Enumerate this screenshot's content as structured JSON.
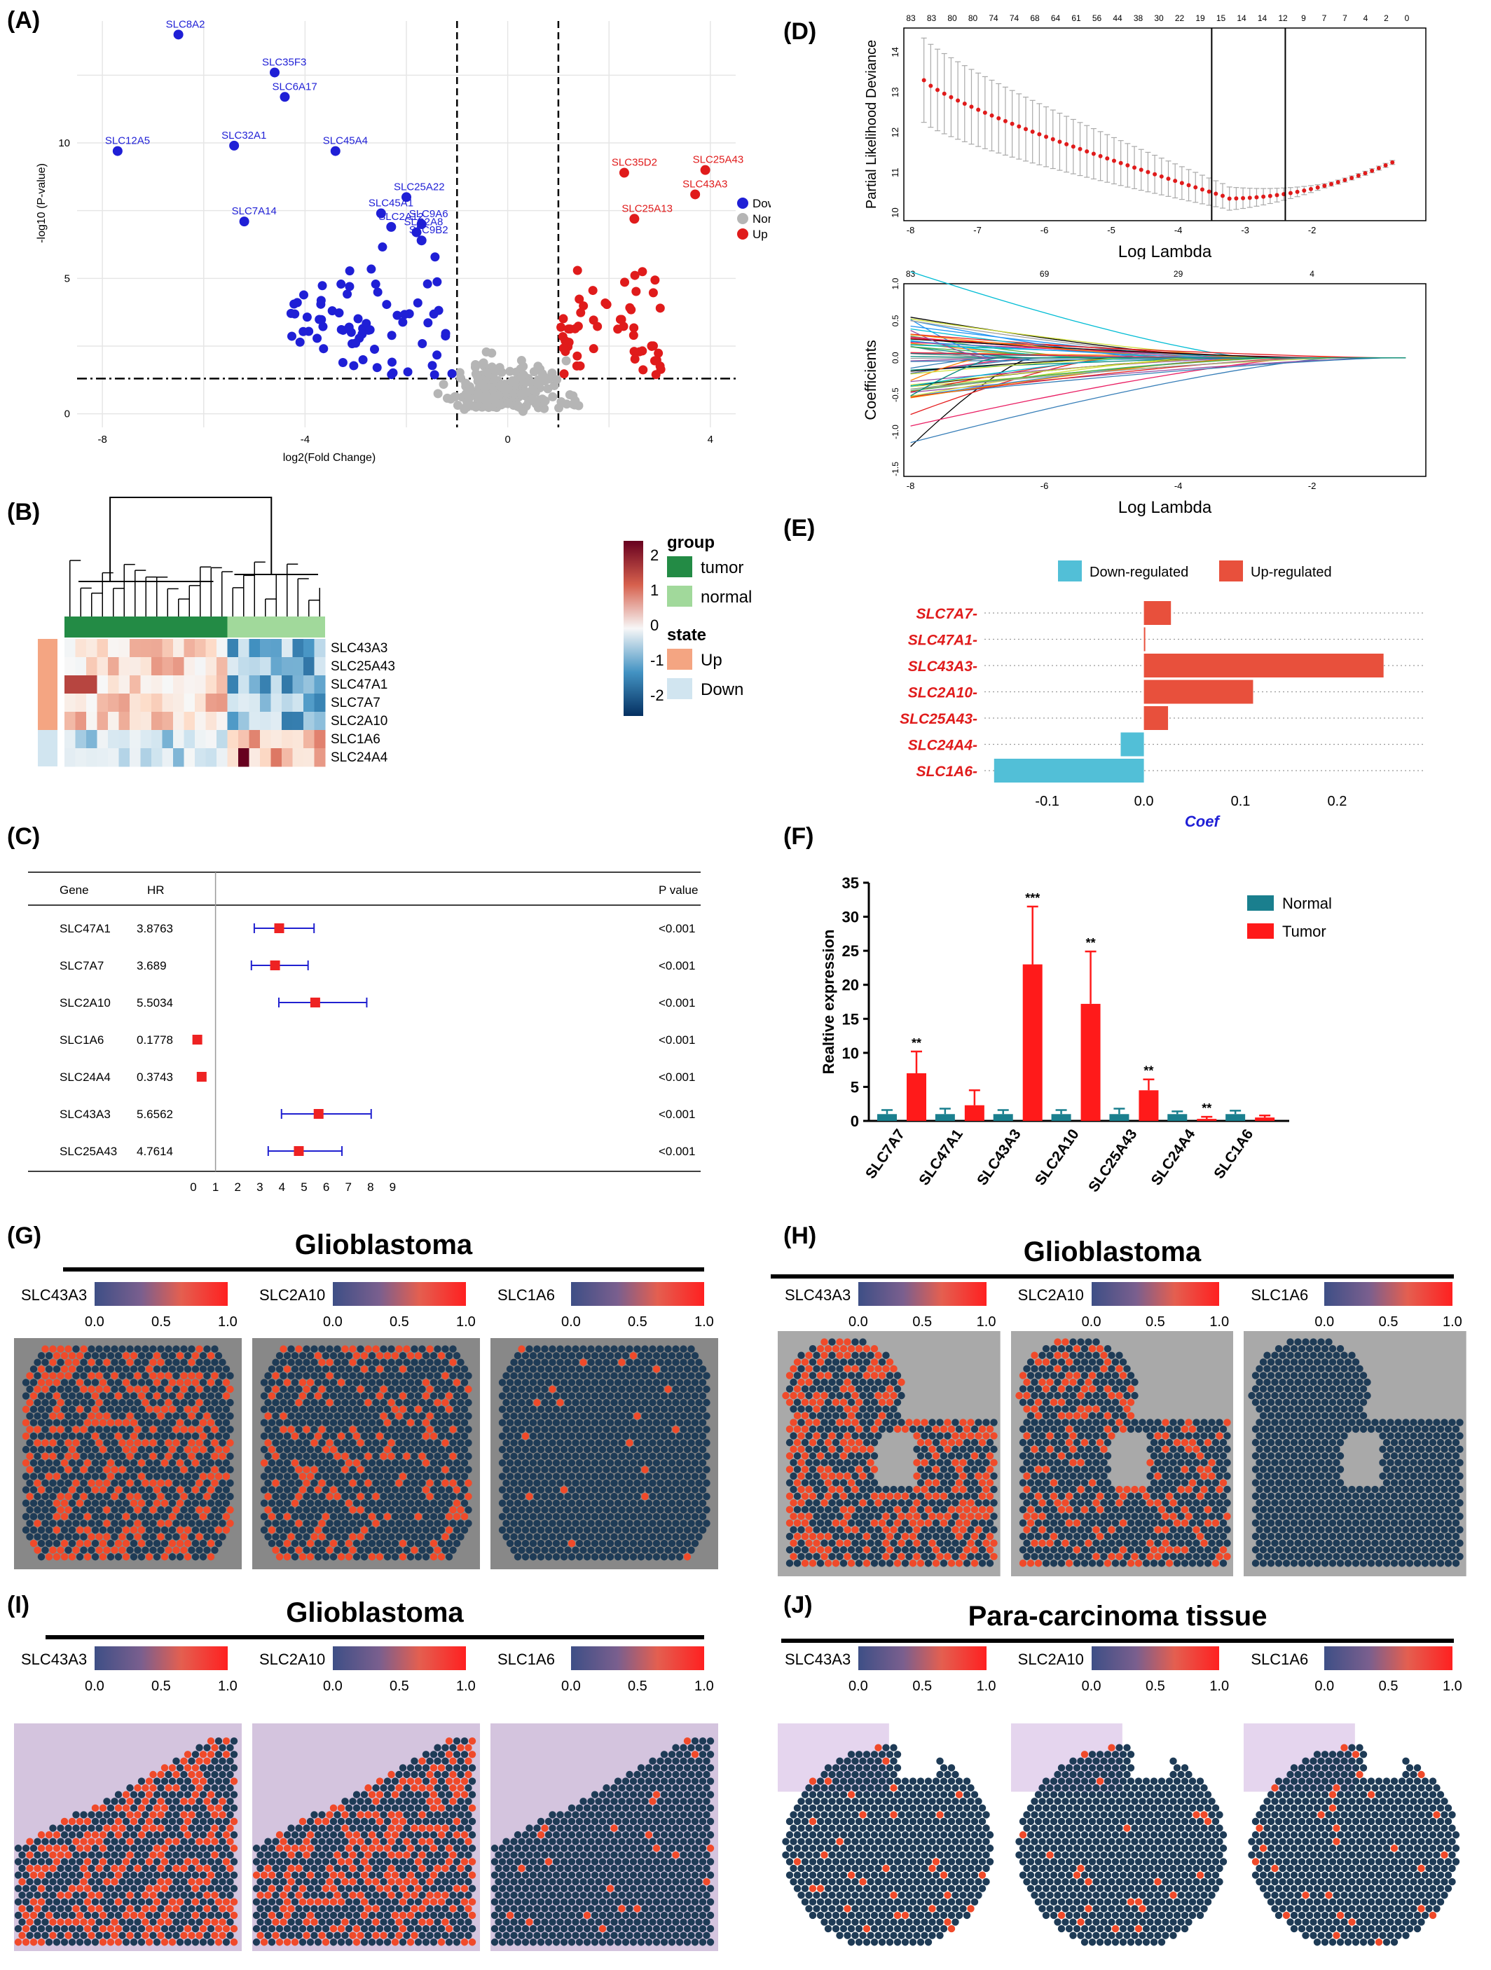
{
  "panel_labels": {
    "A": "(A)",
    "B": "(B)",
    "C": "(C)",
    "D": "(D)",
    "E": "(E)",
    "F": "(F)",
    "G": "(G)",
    "H": "(H)",
    "I": "(I)",
    "J": "(J)"
  },
  "colors": {
    "down": "#1f1fd6",
    "none": "#b5b5b5",
    "up": "#e01b1b",
    "forest": "#ee2222",
    "normal_bar": "#1a7f8e",
    "tumor_bar": "#ff1a1a",
    "coef_up": "#e8503c",
    "coef_down": "#52bfd7",
    "spot": "#1e3b56",
    "spot_hot": "#f04a2a"
  },
  "chart_data": [
    {
      "id": "A",
      "type": "scatter",
      "xlabel": "log2(Fold Change)",
      "ylabel": "-log10 (P-value)",
      "xticks": [
        "-8",
        "-4",
        "0",
        "4"
      ],
      "yticks": [
        "0",
        "5",
        "10"
      ],
      "xlim": [
        -8.5,
        4.5
      ],
      "ylim": [
        -0.5,
        14.5
      ],
      "legend": [
        "Down",
        "None",
        "Up"
      ],
      "labeled_points": [
        {
          "name": "SLC8A2",
          "x": -6.5,
          "y": 14.0
        },
        {
          "name": "SLC35F3",
          "x": -4.6,
          "y": 12.6
        },
        {
          "name": "SLC6A17",
          "x": -4.4,
          "y": 11.7
        },
        {
          "name": "SLC32A1",
          "x": -5.4,
          "y": 9.9
        },
        {
          "name": "SLC45A4",
          "x": -3.4,
          "y": 9.7
        },
        {
          "name": "SLC12A5",
          "x": -7.7,
          "y": 9.7
        },
        {
          "name": "SLC45A1",
          "x": -2.5,
          "y": 7.4
        },
        {
          "name": "SLC25A22",
          "x": -2.0,
          "y": 8.0
        },
        {
          "name": "SLC2A12",
          "x": -2.3,
          "y": 6.9
        },
        {
          "name": "SLC9A6",
          "x": -1.7,
          "y": 7.0
        },
        {
          "name": "SLC2A8",
          "x": -1.8,
          "y": 6.7
        },
        {
          "name": "SLC9B2",
          "x": -1.7,
          "y": 6.4
        },
        {
          "name": "SLC7A14",
          "x": -5.2,
          "y": 7.1
        },
        {
          "name": "SLC35D2",
          "x": 2.3,
          "y": 8.9
        },
        {
          "name": "SLC25A43",
          "x": 3.9,
          "y": 9.0
        },
        {
          "name": "SLC43A3",
          "x": 3.7,
          "y": 8.1
        },
        {
          "name": "SLC25A13",
          "x": 2.5,
          "y": 7.2
        }
      ]
    },
    {
      "id": "B",
      "type": "heatmap",
      "rows": [
        "SLC43A3",
        "SLC25A43",
        "SLC47A1",
        "SLC7A7",
        "SLC2A10",
        "SLC1A6",
        "SLC24A4"
      ],
      "legend_ticks": [
        "2",
        "1",
        "0",
        "-1",
        "-2"
      ],
      "group_title": "group",
      "groups": [
        "tumor",
        "normal"
      ],
      "state_title": "state",
      "states": [
        "Up",
        "Down"
      ]
    },
    {
      "id": "C",
      "type": "table",
      "headers": {
        "gene": "Gene",
        "hr": "HR",
        "p": "P value"
      },
      "rows": [
        {
          "gene": "SLC47A1",
          "hr": "3.8763",
          "hr_val": 3.8763,
          "lo": 2.75,
          "hi": 5.45,
          "p": "<0.001"
        },
        {
          "gene": "SLC7A7",
          "hr": "3.689",
          "hr_val": 3.689,
          "lo": 2.62,
          "hi": 5.18,
          "p": "<0.001"
        },
        {
          "gene": "SLC2A10",
          "hr": "5.5034",
          "hr_val": 5.5034,
          "lo": 3.86,
          "hi": 7.83,
          "p": "<0.001"
        },
        {
          "gene": "SLC1A6",
          "hr": "0.1778",
          "hr_val": 0.1778,
          "lo": 0.14,
          "hi": 0.22,
          "p": "<0.001"
        },
        {
          "gene": "SLC24A4",
          "hr": "0.3743",
          "hr_val": 0.3743,
          "lo": 0.3,
          "hi": 0.5,
          "p": "<0.001"
        },
        {
          "gene": "SLC43A3",
          "hr": "5.6562",
          "hr_val": 5.6562,
          "lo": 3.98,
          "hi": 8.03,
          "p": "<0.001"
        },
        {
          "gene": "SLC25A43",
          "hr": "4.7614",
          "hr_val": 4.7614,
          "lo": 3.38,
          "hi": 6.71,
          "p": "<0.001"
        }
      ],
      "xticks": [
        "0",
        "1",
        "2",
        "3",
        "4",
        "5",
        "6",
        "7",
        "8",
        "9"
      ]
    },
    {
      "id": "D1",
      "type": "line",
      "xlabel": "Log Lambda",
      "ylabel": "Partial Likelihood Deviance",
      "xticks": [
        "-8",
        "-7",
        "-6",
        "-5",
        "-4",
        "-3",
        "-2"
      ],
      "yticks": [
        "10",
        "11",
        "12",
        "13",
        "14"
      ],
      "top_ticks": [
        "83",
        "83",
        "80",
        "80",
        "74",
        "74",
        "68",
        "64",
        "61",
        "56",
        "44",
        "38",
        "30",
        "22",
        "19",
        "15",
        "14",
        "14",
        "12",
        "9",
        "7",
        "7",
        "4",
        "2",
        "0"
      ],
      "vlines": [
        -3.5,
        -2.4
      ]
    },
    {
      "id": "D2",
      "type": "line",
      "xlabel": "Log Lambda",
      "ylabel": "Coefficients",
      "xticks": [
        "-8",
        "-6",
        "-4",
        "-2"
      ],
      "yticks": [
        "-1.5",
        "-1.0",
        "-0.5",
        "0.0",
        "0.5",
        "1.0"
      ],
      "top_ticks": [
        "83",
        "69",
        "29",
        "4"
      ]
    },
    {
      "id": "E",
      "type": "bar",
      "legend": [
        "Down-regulated",
        "Up-regulated"
      ],
      "categories": [
        "SLC7A7",
        "SLC47A1",
        "SLC43A3",
        "SLC2A10",
        "SLC25A43",
        "SLC24A4",
        "SLC1A6"
      ],
      "values": [
        0.028,
        0.001,
        0.248,
        0.113,
        0.025,
        -0.024,
        -0.155
      ],
      "xlabel": "Coef",
      "xticks": [
        "-0.1",
        "0.0",
        "0.1",
        "0.2"
      ],
      "xlim": [
        -0.165,
        0.27
      ]
    },
    {
      "id": "F",
      "type": "bar",
      "ylabel": "Realtive expression",
      "yticks": [
        "0",
        "5",
        "10",
        "15",
        "20",
        "25",
        "30",
        "35"
      ],
      "ylim": [
        0,
        35
      ],
      "categories": [
        "SLC7A7",
        "SLC47A1",
        "SLC43A3",
        "SLC2A10",
        "SLC25A43",
        "SLC24A4",
        "SLC1A6"
      ],
      "series": [
        {
          "name": "Normal",
          "values": [
            1.0,
            1.0,
            1.0,
            1.0,
            1.0,
            1.0,
            1.0
          ],
          "err": [
            0.6,
            0.8,
            0.6,
            0.6,
            0.8,
            0.4,
            0.5
          ]
        },
        {
          "name": "Tumor",
          "values": [
            7.0,
            2.3,
            23.0,
            17.2,
            4.5,
            0.3,
            0.5
          ],
          "err": [
            3.2,
            2.2,
            8.5,
            7.7,
            1.6,
            0.3,
            0.3
          ]
        }
      ],
      "sig": [
        "**",
        "",
        "***",
        "**",
        "**",
        "**",
        ""
      ]
    }
  ],
  "spatial": [
    {
      "id": "G",
      "title": "Glioblastoma",
      "genes": [
        "SLC43A3",
        "SLC2A10",
        "SLC1A6"
      ],
      "ticks": [
        "0.0",
        "0.5",
        "1.0"
      ]
    },
    {
      "id": "H",
      "title": "Glioblastoma",
      "genes": [
        "SLC43A3",
        "SLC2A10",
        "SLC1A6"
      ],
      "ticks": [
        "0.0",
        "0.5",
        "1.0"
      ]
    },
    {
      "id": "I",
      "title": "Glioblastoma",
      "genes": [
        "SLC43A3",
        "SLC2A10",
        "SLC1A6"
      ],
      "ticks": [
        "0.0",
        "0.5",
        "1.0"
      ]
    },
    {
      "id": "J",
      "title": "Para-carcinoma tissue",
      "genes": [
        "SLC43A3",
        "SLC2A10",
        "SLC1A6"
      ],
      "ticks": [
        "0.0",
        "0.5",
        "1.0"
      ]
    }
  ]
}
